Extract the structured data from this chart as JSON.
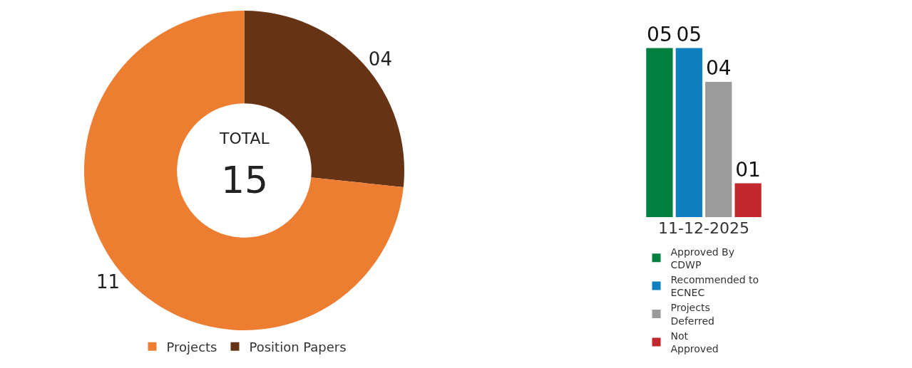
{
  "chart_data": [
    {
      "type": "donut",
      "categories": [
        "Projects",
        "Position Papers"
      ],
      "values": [
        11,
        4
      ],
      "colors": [
        "#ed7d31",
        "#663314"
      ],
      "value_labels": [
        "11",
        "04"
      ],
      "annotations": [
        "TOTAL",
        "15"
      ],
      "legend": "bottom"
    },
    {
      "type": "bar",
      "categories": [
        "11-12-2025"
      ],
      "series": [
        {
          "name": "Approved By CDWP",
          "color": "#007f3f",
          "values": [
            5
          ],
          "value_labels": [
            "05"
          ]
        },
        {
          "name": "Recommended to ECNEC",
          "color": "#0f7fbf",
          "values": [
            5
          ],
          "value_labels": [
            "05"
          ]
        },
        {
          "name": "Projects Deferred",
          "color": "#9b9b9b",
          "values": [
            4
          ],
          "value_labels": [
            "04"
          ]
        },
        {
          "name": "Not Approved",
          "color": "#c1272d",
          "values": [
            1
          ],
          "value_labels": [
            "01"
          ]
        }
      ],
      "legend": "bottom"
    }
  ]
}
